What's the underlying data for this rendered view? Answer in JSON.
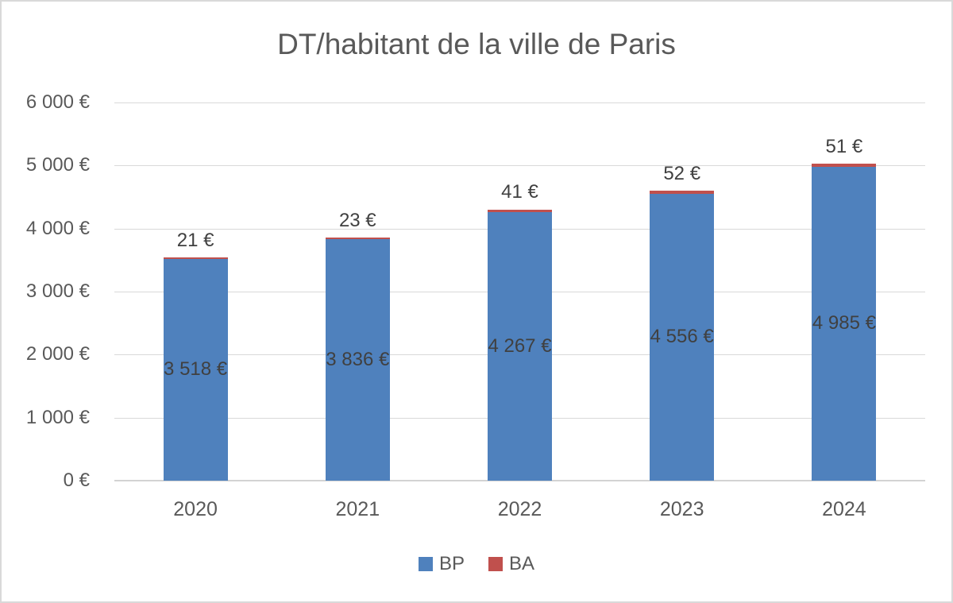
{
  "title": "DT/habitant de la ville de Paris",
  "colors": {
    "bp": "#4f81bd",
    "ba": "#c0504d",
    "gridline": "#d9d9d9",
    "axis_text": "#595959",
    "data_label_text": "#404040",
    "frame_border": "#d9d9d9",
    "background": "#ffffff"
  },
  "legend": {
    "position": "bottom",
    "items": [
      {
        "label": "BP",
        "color": "#4f81bd"
      },
      {
        "label": "BA",
        "color": "#c0504d"
      }
    ]
  },
  "chart_data": {
    "type": "bar",
    "stacked": true,
    "title": "DT/habitant de la ville de Paris",
    "categories": [
      "2020",
      "2021",
      "2022",
      "2023",
      "2024"
    ],
    "series": [
      {
        "name": "BP",
        "color": "#4f81bd",
        "values": [
          3518,
          3836,
          4267,
          4556,
          4985
        ],
        "labels": [
          "3 518 €",
          "3 836 €",
          "4 267 €",
          "4 556 €",
          "4 985 €"
        ],
        "label_position": "center"
      },
      {
        "name": "BA",
        "color": "#c0504d",
        "values": [
          21,
          23,
          41,
          52,
          51
        ],
        "labels": [
          "21 €",
          "23 €",
          "41 €",
          "52 €",
          "51 €"
        ],
        "label_position": "outside-end"
      }
    ],
    "xlabel": "",
    "ylabel": "",
    "ylim": [
      0,
      6000
    ],
    "yticks": [
      {
        "value": 0,
        "label": "0 €"
      },
      {
        "value": 1000,
        "label": "1 000 €"
      },
      {
        "value": 2000,
        "label": "2 000 €"
      },
      {
        "value": 3000,
        "label": "3 000 €"
      },
      {
        "value": 4000,
        "label": "4 000 €"
      },
      {
        "value": 5000,
        "label": "5 000 €"
      },
      {
        "value": 6000,
        "label": "6 000 €"
      }
    ],
    "grid": true,
    "legend_position": "bottom"
  }
}
